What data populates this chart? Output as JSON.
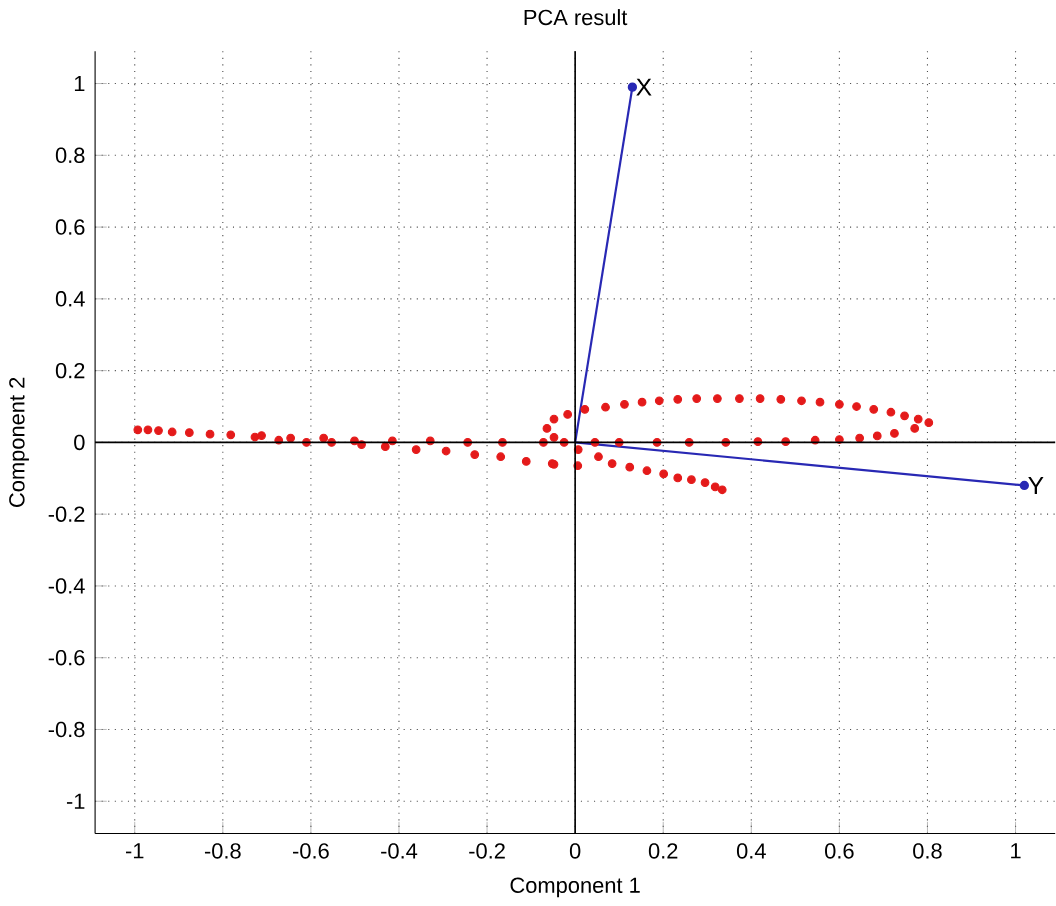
{
  "chart_data": {
    "type": "scatter",
    "title": "PCA result",
    "xlabel": "Component 1",
    "ylabel": "Component 2",
    "xlim": [
      -1.09,
      1.09
    ],
    "ylim": [
      -1.09,
      1.09
    ],
    "xticks": [
      -1,
      -0.8,
      -0.6,
      -0.4,
      -0.2,
      0,
      0.2,
      0.4,
      0.6,
      0.8,
      1
    ],
    "yticks": [
      -1,
      -0.8,
      -0.6,
      -0.4,
      -0.2,
      0,
      0.2,
      0.4,
      0.6,
      0.8,
      1
    ],
    "grid": true,
    "annotations": [
      {
        "text": "X",
        "x": 0.13,
        "y": 0.99
      },
      {
        "text": "Y",
        "x": 1.02,
        "y": -0.12
      }
    ],
    "series": [
      {
        "type": "line",
        "color": "#2828b4",
        "marker": "none",
        "x": [
          0,
          0.13
        ],
        "values": [
          0,
          0.99
        ]
      },
      {
        "type": "line",
        "color": "#2828b4",
        "marker": "none",
        "x": [
          0,
          1.02
        ],
        "values": [
          0,
          -0.12
        ]
      },
      {
        "type": "scatter",
        "color": "#e41a1a",
        "marker": "circle",
        "x": [
          -0.993,
          -0.97,
          -0.946,
          -0.915,
          -0.876,
          -0.829,
          -0.782,
          -0.727,
          -0.712,
          -0.673,
          -0.646,
          -0.61,
          -0.571,
          -0.553,
          -0.501,
          -0.485,
          -0.431,
          -0.415,
          -0.361,
          -0.329,
          -0.293,
          -0.244,
          -0.228,
          -0.165,
          -0.169,
          -0.111,
          -0.072,
          -0.052,
          0.006,
          -0.048,
          0.022,
          0.069,
          0.112,
          0.152,
          0.191,
          0.233,
          0.276,
          0.323,
          0.373,
          0.42,
          0.467,
          0.514,
          0.556,
          0.6,
          0.639,
          0.678,
          0.717,
          0.748,
          0.779,
          0.803,
          0.771,
          0.725,
          0.686,
          0.646,
          0.6,
          0.545,
          0.478,
          0.415,
          0.342,
          0.259,
          0.186,
          0.1,
          0.045,
          -0.017,
          -0.048,
          -0.064,
          -0.048,
          -0.025,
          0.007,
          0.053,
          0.084,
          0.124,
          0.163,
          0.201,
          0.233,
          0.264,
          0.295,
          0.318,
          0.334
        ],
        "values": [
          0.035,
          0.035,
          0.033,
          0.029,
          0.027,
          0.023,
          0.021,
          0.015,
          0.019,
          0.006,
          0.012,
          0,
          0.012,
          0,
          0.004,
          -0.006,
          -0.012,
          0.004,
          -0.02,
          0.004,
          -0.024,
          0,
          -0.034,
          0,
          -0.04,
          -0.053,
          0,
          -0.059,
          -0.065,
          -0.061,
          0.092,
          0.098,
          0.106,
          0.112,
          0.116,
          0.12,
          0.122,
          0.122,
          0.122,
          0.122,
          0.12,
          0.116,
          0.112,
          0.106,
          0.1,
          0.092,
          0.084,
          0.074,
          0.065,
          0.055,
          0.039,
          0.025,
          0.018,
          0.012,
          0.008,
          0.006,
          0.002,
          0.002,
          0,
          0,
          0,
          0,
          0,
          0.078,
          0.065,
          0.039,
          0.014,
          0,
          -0.02,
          -0.04,
          -0.059,
          -0.069,
          -0.079,
          -0.088,
          -0.099,
          -0.104,
          -0.112,
          -0.124,
          -0.132
        ]
      }
    ]
  }
}
